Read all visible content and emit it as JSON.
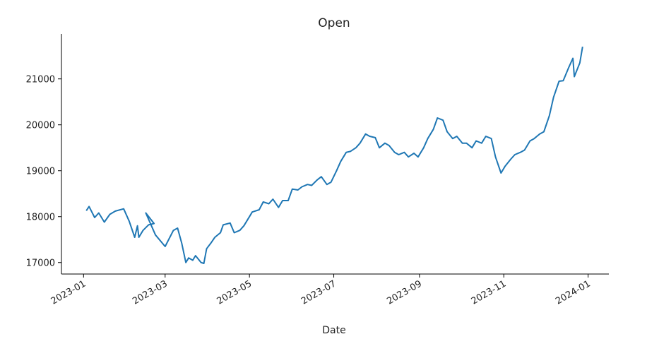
{
  "chart_data": {
    "type": "line",
    "title": "Open",
    "x_label": "Date",
    "x": [
      "2023-01-03",
      "2023-01-05",
      "2023-01-09",
      "2023-01-12",
      "2023-01-16",
      "2023-01-20",
      "2023-01-24",
      "2023-01-30",
      "2023-02-03",
      "2023-02-07",
      "2023-02-09",
      "2023-02-10",
      "2023-02-13",
      "2023-02-17",
      "2023-02-21",
      "2023-02-15",
      "2023-02-22",
      "2023-03-01",
      "2023-03-07",
      "2023-03-10",
      "2023-03-13",
      "2023-03-16",
      "2023-03-18",
      "2023-03-21",
      "2023-03-23",
      "2023-03-27",
      "2023-03-29",
      "2023-03-31",
      "2023-04-03",
      "2023-04-06",
      "2023-04-10",
      "2023-04-12",
      "2023-04-17",
      "2023-04-20",
      "2023-04-24",
      "2023-04-27",
      "2023-05-01",
      "2023-05-03",
      "2023-05-08",
      "2023-05-11",
      "2023-05-15",
      "2023-05-18",
      "2023-05-22",
      "2023-05-25",
      "2023-05-29",
      "2023-06-01",
      "2023-06-05",
      "2023-06-08",
      "2023-06-12",
      "2023-06-15",
      "2023-06-19",
      "2023-06-22",
      "2023-06-26",
      "2023-06-29",
      "2023-07-03",
      "2023-07-06",
      "2023-07-10",
      "2023-07-13",
      "2023-07-17",
      "2023-07-20",
      "2023-07-24",
      "2023-07-27",
      "2023-07-31",
      "2023-08-03",
      "2023-08-07",
      "2023-08-10",
      "2023-08-14",
      "2023-08-17",
      "2023-08-21",
      "2023-08-24",
      "2023-08-28",
      "2023-08-31",
      "2023-09-04",
      "2023-09-07",
      "2023-09-11",
      "2023-09-14",
      "2023-09-18",
      "2023-09-21",
      "2023-09-25",
      "2023-09-28",
      "2023-10-02",
      "2023-10-05",
      "2023-10-09",
      "2023-10-12",
      "2023-10-16",
      "2023-10-19",
      "2023-10-23",
      "2023-10-26",
      "2023-10-30",
      "2023-11-02",
      "2023-11-06",
      "2023-11-09",
      "2023-11-13",
      "2023-11-16",
      "2023-11-20",
      "2023-11-23",
      "2023-11-27",
      "2023-11-30",
      "2023-12-04",
      "2023-12-07",
      "2023-12-11",
      "2023-12-14",
      "2023-12-18",
      "2023-12-21",
      "2023-12-22",
      "2023-12-26",
      "2023-12-28"
    ],
    "series": [
      {
        "name": "Open",
        "color": "#1f77b4",
        "values": [
          18130,
          18220,
          17980,
          18080,
          17880,
          18050,
          18120,
          18170,
          17900,
          17550,
          17800,
          17550,
          17700,
          17820,
          17850,
          18080,
          17600,
          17350,
          17700,
          17750,
          17420,
          17000,
          17100,
          17050,
          17150,
          17000,
          16980,
          17300,
          17420,
          17550,
          17650,
          17820,
          17860,
          17650,
          17700,
          17800,
          18000,
          18100,
          18150,
          18320,
          18280,
          18380,
          18200,
          18350,
          18350,
          18600,
          18580,
          18650,
          18700,
          18680,
          18800,
          18870,
          18700,
          18750,
          19000,
          19200,
          19400,
          19420,
          19500,
          19600,
          19800,
          19750,
          19720,
          19500,
          19600,
          19550,
          19400,
          19350,
          19400,
          19300,
          19380,
          19300,
          19500,
          19700,
          19900,
          20150,
          20100,
          19850,
          19700,
          19750,
          19600,
          19600,
          19500,
          19650,
          19600,
          19750,
          19700,
          19300,
          18950,
          19100,
          19250,
          19350,
          19400,
          19450,
          19650,
          19700,
          19800,
          19850,
          20200,
          20600,
          20950,
          20960,
          21250,
          21450,
          21050,
          21350,
          21700
        ]
      }
    ],
    "xlim": [
      "2022-12-16",
      "2024-01-16"
    ],
    "xticks": [
      "2023-01",
      "2023-03",
      "2023-05",
      "2023-07",
      "2023-09",
      "2023-11",
      "2024-01"
    ],
    "ylim": [
      16750,
      21980
    ],
    "yticks": [
      17000,
      18000,
      19000,
      20000,
      21000
    ]
  }
}
